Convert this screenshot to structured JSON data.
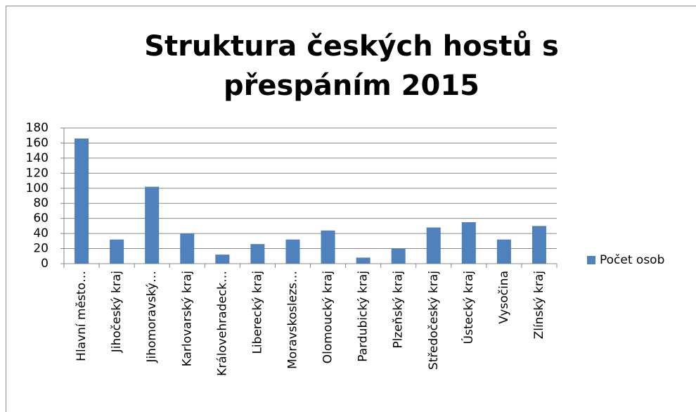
{
  "chart_data": {
    "type": "bar",
    "title": "Struktura českých hostů s přespáním 2015",
    "categories": [
      "Hlavní město…",
      "Jihočeský kraj",
      "Jihomoravský…",
      "Karlovarský kraj",
      "Královehradeck…",
      "Liberecký kraj",
      "Moravskoslezs…",
      "Olomoucký kraj",
      "Pardubický kraj",
      "Plzeňský kraj",
      "Středočeský kraj",
      "Ústecký kraj",
      "Vysočina",
      "Zlínský kraj"
    ],
    "series": [
      {
        "name": "Počet osob",
        "color": "#4f81bd",
        "values": [
          166,
          32,
          102,
          40,
          12,
          26,
          32,
          44,
          8,
          20,
          48,
          55,
          32,
          50
        ]
      }
    ],
    "ylim": [
      0,
      180
    ],
    "yticks": [
      0,
      20,
      40,
      60,
      80,
      100,
      120,
      140,
      160,
      180
    ],
    "grid": true,
    "legend": "right"
  }
}
